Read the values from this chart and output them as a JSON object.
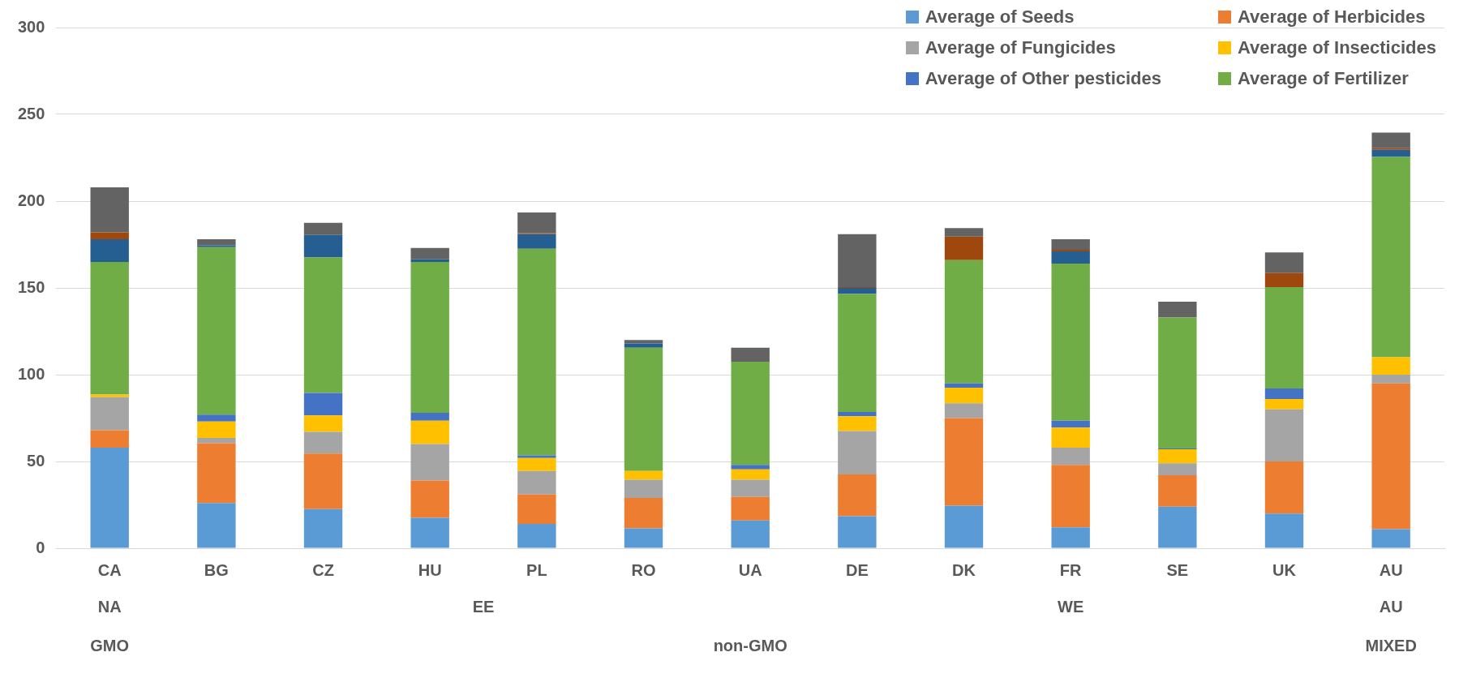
{
  "chart_data": {
    "type": "bar",
    "stacked": true,
    "categories": [
      "CA",
      "BG",
      "CZ",
      "HU",
      "PL",
      "RO",
      "UA",
      "DE",
      "DK",
      "FR",
      "SE",
      "UK",
      "AU"
    ],
    "series": [
      {
        "name": "Average of Seeds",
        "color": "#5b9bd5",
        "values": [
          58,
          26,
          22.5,
          17.5,
          14,
          11.5,
          16,
          18.5,
          24.5,
          12,
          24,
          20,
          11
        ]
      },
      {
        "name": "Average of Herbicides",
        "color": "#ed7d31",
        "values": [
          10,
          34.5,
          32,
          21.5,
          17,
          17.5,
          13.5,
          24,
          50.5,
          36,
          18,
          30,
          84
        ]
      },
      {
        "name": "Average of Fungicides",
        "color": "#a5a5a5",
        "values": [
          19,
          3,
          12.5,
          21,
          13.5,
          10.5,
          10,
          25,
          8.5,
          10,
          7,
          30,
          5
        ]
      },
      {
        "name": "Average of Insecticides",
        "color": "#ffc000",
        "values": [
          1.5,
          9.5,
          9.5,
          13.5,
          7.5,
          5,
          6,
          8.5,
          9,
          11.5,
          8,
          6,
          10
        ]
      },
      {
        "name": "Average of Other pesticides",
        "color": "#4472c4",
        "values": [
          0,
          4,
          13,
          4.5,
          1.5,
          0,
          2.5,
          2.5,
          2.5,
          4,
          0.5,
          6,
          0
        ]
      },
      {
        "name": "Average of Fertilizer",
        "color": "#70ad47",
        "values": [
          76.5,
          96.5,
          78,
          87,
          119,
          71,
          59.5,
          68,
          71,
          90.5,
          75.5,
          58.5,
          115.5
        ]
      },
      {
        "color": "#255e91",
        "values": [
          13,
          1,
          13,
          1.5,
          8.5,
          2.5,
          0,
          3.5,
          0,
          7,
          0,
          0,
          4
        ]
      },
      {
        "color": "#9e480e",
        "values": [
          4,
          0,
          0,
          0,
          0.5,
          0,
          0,
          0.5,
          13.5,
          1,
          0,
          8,
          1
        ]
      },
      {
        "color": "#636363",
        "values": [
          26,
          3.5,
          7,
          6.5,
          12,
          2,
          8,
          30.5,
          5,
          6,
          9,
          12,
          9
        ]
      }
    ],
    "ylim": [
      0,
      300
    ],
    "yticks": [
      0,
      50,
      100,
      150,
      200,
      250,
      300
    ],
    "grid": "y",
    "legend": "top right",
    "annotations": [
      "NA",
      "EE",
      "WE",
      "AU",
      "GMO",
      "non-GMO",
      "MIXED"
    ]
  }
}
